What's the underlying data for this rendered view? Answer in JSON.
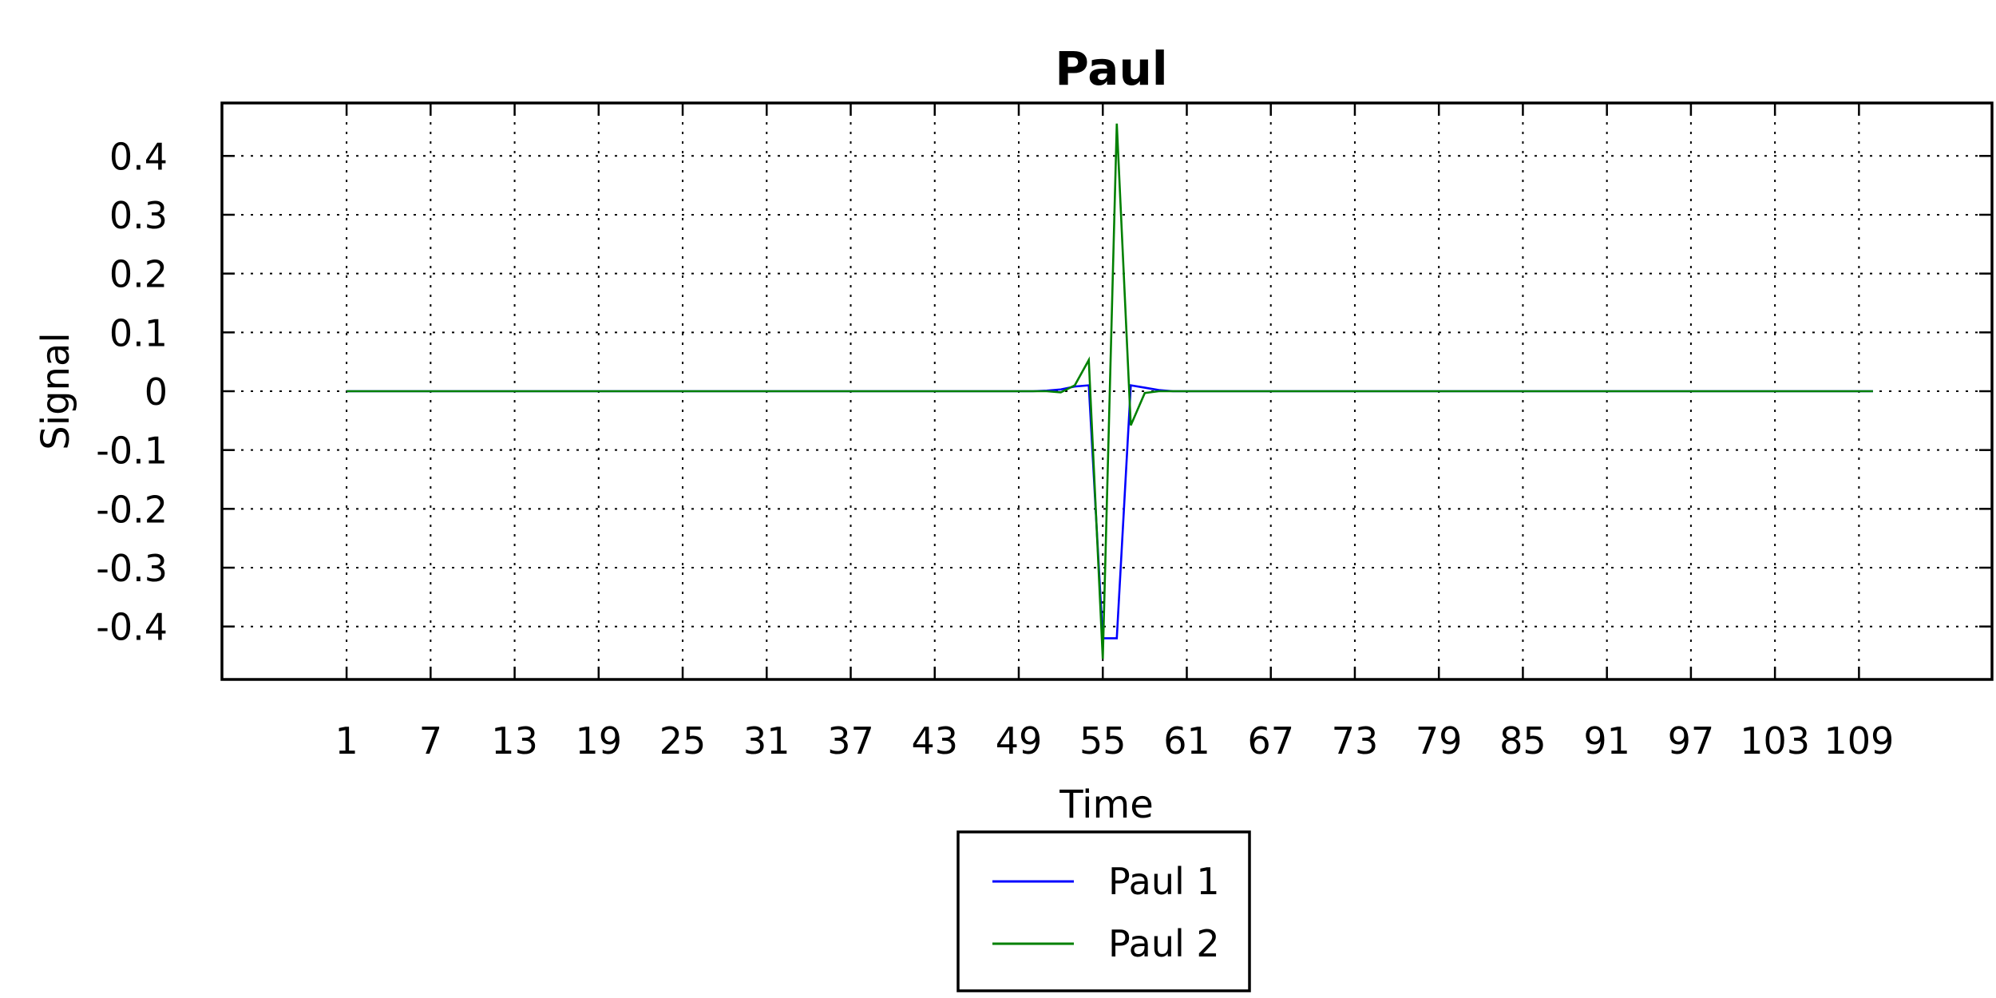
{
  "chart_data": {
    "type": "line",
    "title": "Paul",
    "xlabel": "Time",
    "ylabel": "Signal",
    "xlim": [
      -7.9,
      118.5
    ],
    "ylim": [
      -0.49,
      0.49
    ],
    "x_ticks": [
      1,
      7,
      13,
      19,
      25,
      31,
      37,
      43,
      49,
      55,
      61,
      67,
      73,
      79,
      85,
      91,
      97,
      103,
      109
    ],
    "y_ticks": [
      -0.4,
      -0.3,
      -0.2,
      -0.1,
      0,
      0.1,
      0.2,
      0.3,
      0.4
    ],
    "y_tick_labels": [
      "-0.4",
      "-0.3",
      "-0.2",
      "-0.1",
      "0",
      "0.1",
      "0.2",
      "0.3",
      "0.4"
    ],
    "grid": true,
    "legend_position": "below",
    "series": [
      {
        "name": "Paul 1",
        "color": "#0000ff",
        "points": [
          [
            1,
            0
          ],
          [
            50,
            0
          ],
          [
            51,
            0.001
          ],
          [
            52,
            0.003
          ],
          [
            53,
            0.008
          ],
          [
            54,
            0.01
          ],
          [
            55,
            -0.42
          ],
          [
            56,
            -0.42
          ],
          [
            57,
            0.01
          ],
          [
            58,
            0.006
          ],
          [
            59,
            0.002
          ],
          [
            60,
            0
          ],
          [
            110,
            0
          ]
        ]
      },
      {
        "name": "Paul 2",
        "color": "#008000",
        "points": [
          [
            1,
            0
          ],
          [
            51,
            0
          ],
          [
            52,
            -0.002
          ],
          [
            53,
            0.01
          ],
          [
            54,
            0.053
          ],
          [
            55,
            -0.455
          ],
          [
            56,
            0.455
          ],
          [
            57,
            -0.058
          ],
          [
            58,
            -0.003
          ],
          [
            59,
            0
          ],
          [
            110,
            0
          ]
        ]
      }
    ]
  }
}
